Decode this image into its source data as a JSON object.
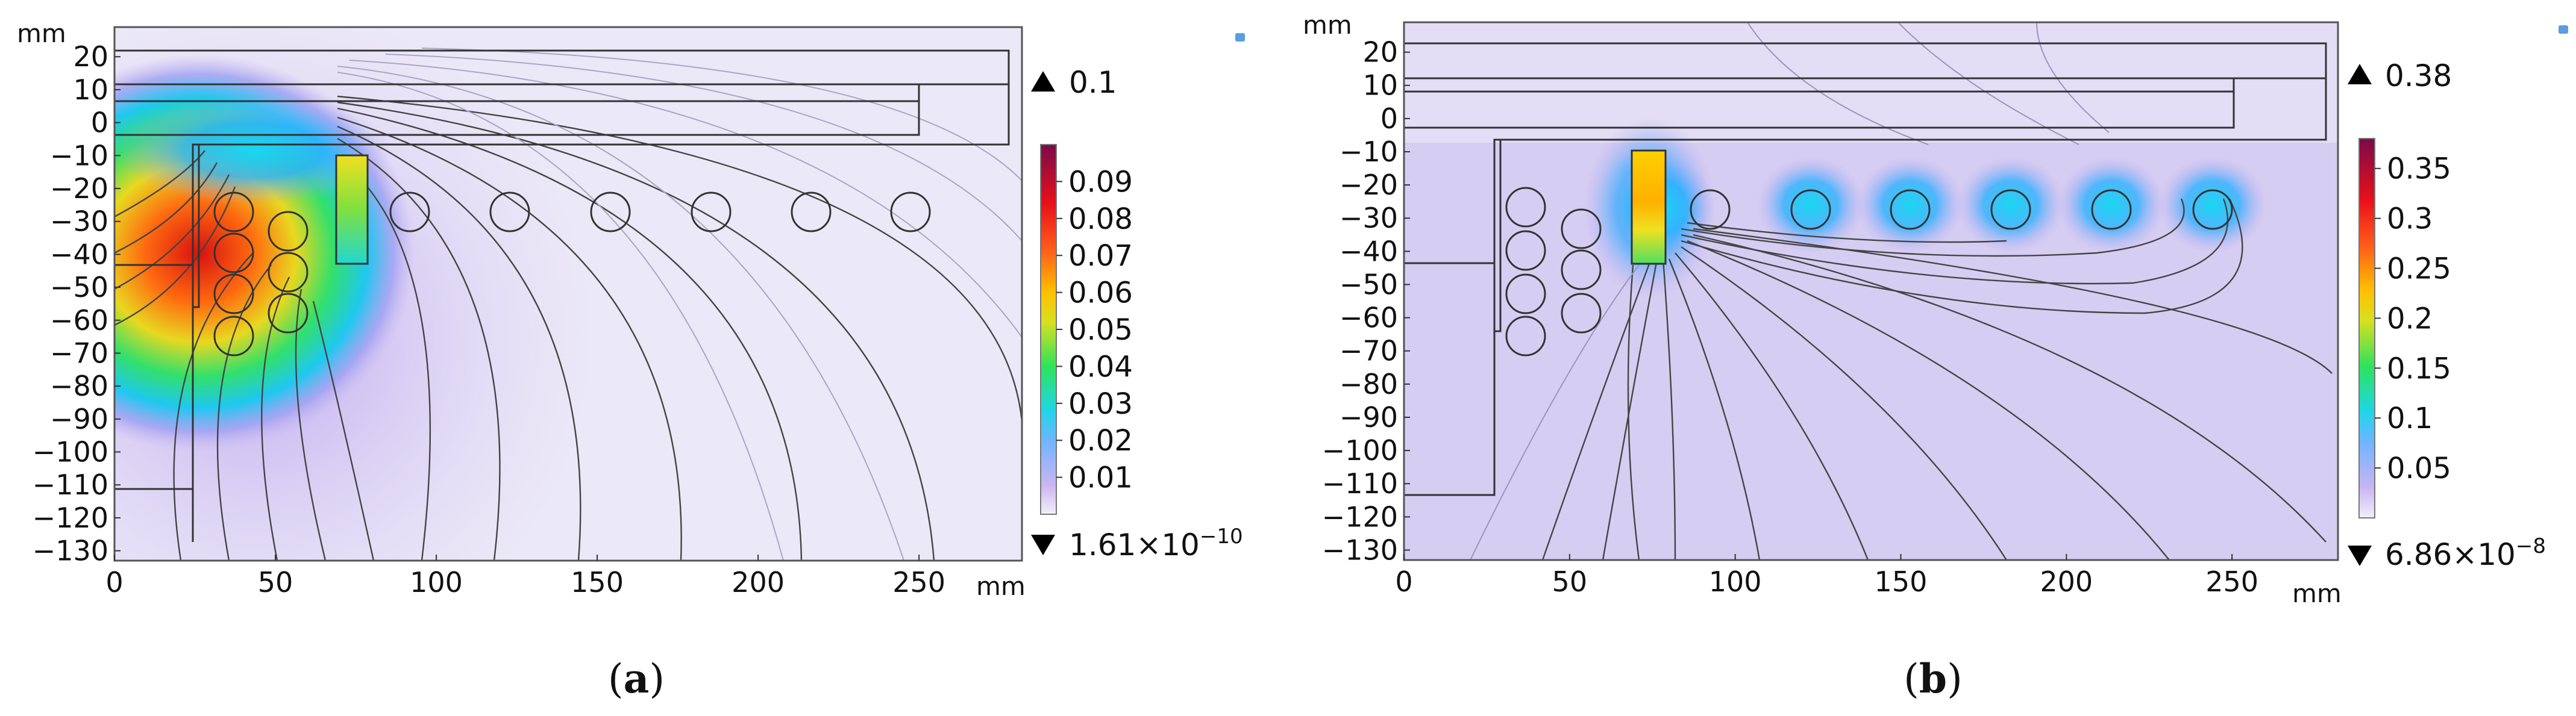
{
  "panels": [
    {
      "id": "a",
      "caption_letter": "a",
      "unit_label": "mm",
      "x_ticks": [
        0,
        50,
        100,
        150,
        200,
        250
      ],
      "y_ticks": [
        20,
        10,
        0,
        -10,
        -20,
        -30,
        -40,
        -50,
        -60,
        -70,
        -80,
        -90,
        -100,
        -110,
        -120,
        -130
      ],
      "x_range": [
        0,
        282
      ],
      "y_range": [
        -133,
        29
      ],
      "colorbar_ticks": [
        0.09,
        0.08,
        0.07,
        0.06,
        0.05,
        0.04,
        0.03,
        0.02,
        0.01
      ],
      "colorbar_ticks_text": [
        "0.09",
        "0.08",
        "0.07",
        "0.06",
        "0.05",
        "0.04",
        "0.03",
        "0.02",
        "0.01"
      ],
      "colorbar_range": [
        0,
        0.1
      ],
      "max_marker": "0.1",
      "min_marker_base": "1.61×10",
      "min_marker_exp": "−10"
    },
    {
      "id": "b",
      "caption_letter": "b",
      "unit_label": "mm",
      "x_ticks": [
        0,
        50,
        100,
        150,
        200,
        250
      ],
      "y_ticks": [
        20,
        10,
        0,
        -10,
        -20,
        -30,
        -40,
        -50,
        -60,
        -70,
        -80,
        -90,
        -100,
        -110,
        -120,
        -130
      ],
      "x_range": [
        0,
        282
      ],
      "y_range": [
        -133,
        29
      ],
      "colorbar_ticks": [
        0.35,
        0.3,
        0.25,
        0.2,
        0.15,
        0.1,
        0.05
      ],
      "colorbar_ticks_text": [
        "0.35",
        "0.3",
        "0.25",
        "0.2",
        "0.15",
        "0.1",
        "0.05"
      ],
      "colorbar_range": [
        0,
        0.38
      ],
      "max_marker": "0.38",
      "min_marker_base": "6.86×10",
      "min_marker_exp": "−8"
    }
  ],
  "colors": {
    "background_field": "#e9e6f6",
    "low": "#c9b4f0",
    "high": "#8e0c4a"
  }
}
